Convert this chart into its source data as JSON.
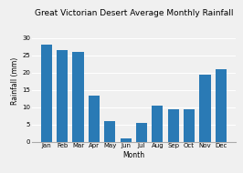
{
  "title": "Great Victorian Desert Average Monthly Rainfall",
  "xlabel": "Month",
  "ylabel": "Rainfall (mm)",
  "months": [
    "Jan",
    "Feb",
    "Mar",
    "Apr",
    "May",
    "Jun",
    "Jul",
    "Aug",
    "Sep",
    "Oct",
    "Nov",
    "Dec"
  ],
  "values": [
    28,
    26.5,
    26,
    13.5,
    6,
    1,
    5.5,
    10.5,
    9.5,
    9.5,
    19.5,
    21
  ],
  "bar_color": "#2a7ab5",
  "ylim": [
    0,
    35
  ],
  "yticks": [
    0,
    5,
    10,
    15,
    20,
    25,
    30
  ],
  "background_color": "#f0f0f0",
  "grid_color": "#ffffff",
  "title_fontsize": 6.5,
  "axis_fontsize": 5.5,
  "tick_fontsize": 5
}
